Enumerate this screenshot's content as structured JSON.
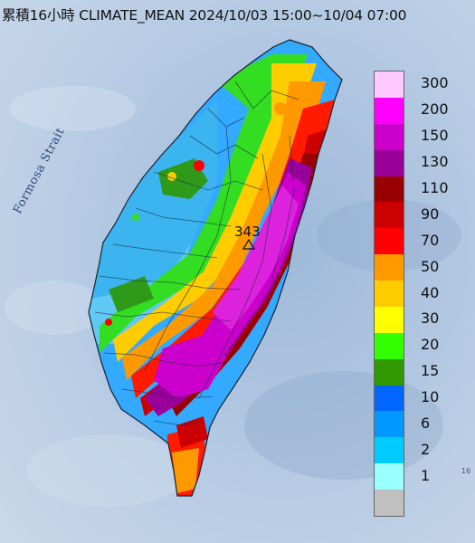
{
  "title": "累積16小時 CLIMATE_MEAN 2024/10/03 15:00~10/04 07:00",
  "strait_label": "Formosa Strait",
  "peak": {
    "value": "343",
    "marker": "triangle-icon"
  },
  "edge_text": "16",
  "legend": {
    "items": [
      {
        "label": "300",
        "color": "#ffc8ff"
      },
      {
        "label": "200",
        "color": "#ff00ff"
      },
      {
        "label": "150",
        "color": "#cc00cc"
      },
      {
        "label": "130",
        "color": "#99009a"
      },
      {
        "label": "110",
        "color": "#990000"
      },
      {
        "label": "90",
        "color": "#cc0000"
      },
      {
        "label": "70",
        "color": "#ff0000"
      },
      {
        "label": "50",
        "color": "#ff9900"
      },
      {
        "label": "40",
        "color": "#ffcc00"
      },
      {
        "label": "30",
        "color": "#ffff00"
      },
      {
        "label": "20",
        "color": "#33ff00"
      },
      {
        "label": "15",
        "color": "#339900"
      },
      {
        "label": "10",
        "color": "#0066ff"
      },
      {
        "label": "6",
        "color": "#0099ff"
      },
      {
        "label": "2",
        "color": "#00ccff"
      },
      {
        "label": "1",
        "color": "#99ffff"
      },
      {
        "label": "",
        "color": "#c0c0c0"
      }
    ]
  }
}
